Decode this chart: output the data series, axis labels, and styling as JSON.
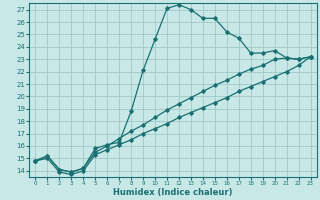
{
  "xlabel": "Humidex (Indice chaleur)",
  "bg_color": "#c8e8e8",
  "grid_color": "#a0c8c8",
  "line_color": "#1a7070",
  "xlim": [
    -0.5,
    23.5
  ],
  "ylim": [
    13.5,
    27.5
  ],
  "xticks": [
    0,
    1,
    2,
    3,
    4,
    5,
    6,
    7,
    8,
    9,
    10,
    11,
    12,
    13,
    14,
    15,
    16,
    17,
    18,
    19,
    20,
    21,
    22,
    23
  ],
  "yticks": [
    14,
    15,
    16,
    17,
    18,
    19,
    20,
    21,
    22,
    23,
    24,
    25,
    26,
    27
  ],
  "line1_x": [
    0,
    1,
    2,
    3,
    4,
    5,
    6,
    7,
    8,
    9,
    10,
    11,
    12,
    13,
    14,
    15,
    16,
    17,
    18,
    19,
    20,
    21,
    22,
    23
  ],
  "line1_y": [
    14.8,
    15.2,
    14.1,
    13.9,
    14.2,
    15.8,
    16.1,
    16.3,
    18.8,
    22.1,
    24.6,
    27.1,
    27.4,
    27.0,
    26.3,
    26.3,
    25.2,
    24.7,
    23.5,
    23.5,
    23.7,
    23.1,
    23.0,
    23.2
  ],
  "line2_x": [
    0,
    1,
    2,
    3,
    4,
    5,
    6,
    7,
    8,
    9,
    10,
    11,
    12,
    13,
    14,
    15,
    16,
    17,
    18,
    19,
    20,
    21,
    22,
    23
  ],
  "line2_y": [
    14.8,
    15.2,
    14.1,
    13.9,
    14.2,
    15.5,
    16.0,
    16.6,
    17.2,
    17.7,
    18.3,
    18.9,
    19.4,
    19.9,
    20.4,
    20.9,
    21.3,
    21.8,
    22.2,
    22.5,
    23.0,
    23.1,
    23.0,
    23.2
  ],
  "line3_x": [
    0,
    1,
    2,
    3,
    4,
    5,
    6,
    7,
    8,
    9,
    10,
    11,
    12,
    13,
    14,
    15,
    16,
    17,
    18,
    19,
    20,
    21,
    22,
    23
  ],
  "line3_y": [
    14.8,
    15.0,
    13.9,
    13.7,
    14.0,
    15.3,
    15.7,
    16.1,
    16.5,
    17.0,
    17.4,
    17.8,
    18.3,
    18.7,
    19.1,
    19.5,
    19.9,
    20.4,
    20.8,
    21.2,
    21.6,
    22.0,
    22.5,
    23.2
  ]
}
